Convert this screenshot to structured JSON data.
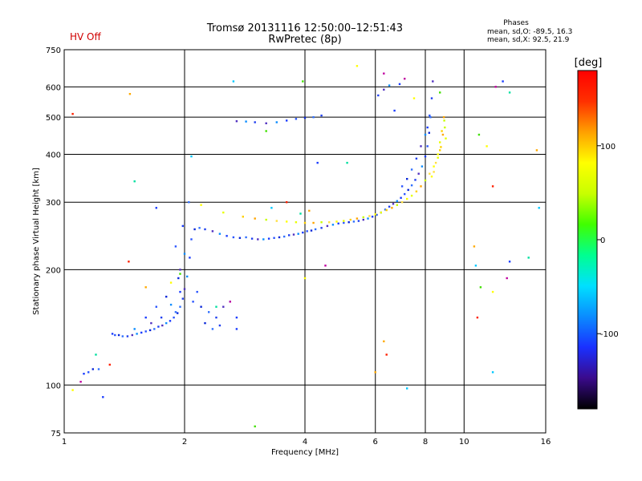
{
  "header": {
    "status": "HV Off",
    "title_line1": "Tromsø 20131116 12:50:00–12:51:43",
    "title_line2": "RwPretec (8p)",
    "phases_label": "Phases",
    "phases_o": "mean, sd,O: -89.5, 16.3",
    "phases_x": "mean, sd,X:  92.5, 21.9"
  },
  "chart_data": {
    "type": "scatter",
    "title": "Tromsø 20131116 12:50:00–12:51:43",
    "subtitle": "RwPretec (8p)",
    "xlabel": "Frequency [MHz]",
    "ylabel": "Stationary phase Virtual Height [km]",
    "x_scale": "log",
    "y_scale": "log",
    "xlim": [
      1,
      16
    ],
    "ylim": [
      75,
      750
    ],
    "x_ticks": [
      1,
      2,
      4,
      6,
      8,
      10,
      16
    ],
    "y_ticks": [
      75,
      100,
      200,
      300,
      400,
      500,
      600,
      750
    ],
    "grid": true,
    "colorbar": {
      "label": "[deg]",
      "range": [
        -180,
        180
      ],
      "ticks": [
        -100,
        0,
        100
      ],
      "colors": [
        "#000000",
        "#3a0a8c",
        "#1a30ff",
        "#0a8cff",
        "#00e0ff",
        "#00ff90",
        "#40ff00",
        "#c8ff00",
        "#ffff00",
        "#ffa000",
        "#ff3000",
        "#ff0000"
      ]
    },
    "series": [
      {
        "trace": "O",
        "points": [
          [
            1.32,
            136
          ],
          [
            1.34,
            135
          ],
          [
            1.37,
            135
          ],
          [
            1.4,
            134
          ],
          [
            1.44,
            134
          ],
          [
            1.48,
            135
          ],
          [
            1.52,
            136
          ],
          [
            1.56,
            137
          ],
          [
            1.6,
            138
          ],
          [
            1.64,
            139
          ],
          [
            1.68,
            140
          ],
          [
            1.72,
            142
          ],
          [
            1.76,
            143
          ],
          [
            1.8,
            145
          ],
          [
            1.84,
            147
          ],
          [
            1.88,
            150
          ],
          [
            1.92,
            154
          ],
          [
            1.95,
            160
          ],
          [
            1.98,
            168
          ],
          [
            2.0,
            178
          ],
          [
            2.03,
            192
          ],
          [
            2.06,
            215
          ],
          [
            2.08,
            240
          ],
          [
            2.12,
            255
          ],
          [
            2.18,
            257
          ],
          [
            2.25,
            255
          ],
          [
            2.35,
            252
          ],
          [
            2.45,
            248
          ],
          [
            2.55,
            245
          ],
          [
            2.65,
            243
          ],
          [
            2.75,
            242
          ],
          [
            2.85,
            243
          ],
          [
            2.95,
            241
          ],
          [
            3.05,
            240
          ],
          [
            3.15,
            240
          ],
          [
            3.25,
            241
          ],
          [
            3.35,
            242
          ],
          [
            3.45,
            243
          ],
          [
            3.55,
            244
          ],
          [
            3.65,
            246
          ],
          [
            3.75,
            247
          ],
          [
            3.85,
            248
          ],
          [
            3.95,
            250
          ],
          [
            4.05,
            252
          ],
          [
            4.15,
            253
          ],
          [
            4.25,
            255
          ],
          [
            4.4,
            257
          ],
          [
            4.55,
            260
          ],
          [
            4.7,
            262
          ],
          [
            4.85,
            264
          ],
          [
            5.0,
            265
          ],
          [
            5.15,
            266
          ],
          [
            5.3,
            267
          ],
          [
            5.45,
            268
          ],
          [
            5.6,
            270
          ],
          [
            5.75,
            272
          ],
          [
            5.9,
            275
          ],
          [
            6.05,
            278
          ],
          [
            6.2,
            282
          ],
          [
            6.35,
            287
          ],
          [
            6.5,
            292
          ],
          [
            6.65,
            297
          ],
          [
            6.8,
            302
          ],
          [
            6.95,
            308
          ],
          [
            7.1,
            315
          ],
          [
            7.25,
            323
          ],
          [
            7.4,
            332
          ],
          [
            7.55,
            343
          ],
          [
            7.7,
            356
          ],
          [
            7.85,
            372
          ],
          [
            8.0,
            395
          ],
          [
            8.1,
            420
          ],
          [
            8.18,
            455
          ],
          [
            8.24,
            500
          ],
          [
            8.3,
            560
          ],
          [
            8.35,
            620
          ],
          [
            1.5,
            140
          ],
          [
            1.6,
            150
          ],
          [
            1.7,
            160
          ],
          [
            1.8,
            170
          ],
          [
            1.9,
            155
          ],
          [
            1.75,
            150
          ],
          [
            1.65,
            145
          ],
          [
            1.85,
            162
          ],
          [
            1.95,
            175
          ],
          [
            2.1,
            165
          ],
          [
            2.2,
            160
          ],
          [
            2.3,
            155
          ],
          [
            2.4,
            150
          ],
          [
            2.5,
            160
          ],
          [
            2.6,
            165
          ],
          [
            2.7,
            150
          ],
          [
            2.15,
            175
          ],
          [
            2.25,
            145
          ],
          [
            2.35,
            140
          ],
          [
            2.45,
            143
          ],
          [
            1.95,
            200
          ],
          [
            2.0,
            220
          ],
          [
            1.98,
            260
          ],
          [
            1.9,
            230
          ],
          [
            1.93,
            190
          ],
          [
            2.05,
            300
          ],
          [
            3.0,
            485
          ],
          [
            3.2,
            482
          ],
          [
            3.4,
            485
          ],
          [
            3.6,
            490
          ],
          [
            3.8,
            495
          ],
          [
            4.0,
            498
          ],
          [
            4.2,
            500
          ],
          [
            4.4,
            505
          ],
          [
            2.7,
            488
          ],
          [
            2.85,
            487
          ],
          [
            1.12,
            107
          ],
          [
            1.15,
            108
          ],
          [
            1.18,
            110
          ],
          [
            1.22,
            110
          ],
          [
            6.1,
            570
          ],
          [
            6.3,
            590
          ],
          [
            6.5,
            605
          ],
          [
            6.7,
            520
          ],
          [
            7.0,
            330
          ],
          [
            7.2,
            345
          ],
          [
            7.4,
            365
          ],
          [
            7.6,
            390
          ],
          [
            7.8,
            420
          ],
          [
            8.0,
            450
          ],
          [
            8.1,
            470
          ],
          [
            8.2,
            505
          ]
        ]
      },
      {
        "trace": "X",
        "points": [
          [
            2.2,
            295
          ],
          [
            2.5,
            282
          ],
          [
            2.8,
            275
          ],
          [
            3.0,
            272
          ],
          [
            3.2,
            270
          ],
          [
            3.4,
            268
          ],
          [
            3.6,
            267
          ],
          [
            3.8,
            266
          ],
          [
            4.0,
            265
          ],
          [
            4.2,
            265
          ],
          [
            4.4,
            266
          ],
          [
            4.6,
            266
          ],
          [
            4.8,
            267
          ],
          [
            5.0,
            268
          ],
          [
            5.2,
            270
          ],
          [
            5.4,
            272
          ],
          [
            5.6,
            274
          ],
          [
            5.8,
            276
          ],
          [
            6.0,
            279
          ],
          [
            6.2,
            282
          ],
          [
            6.4,
            286
          ],
          [
            6.6,
            290
          ],
          [
            6.8,
            295
          ],
          [
            7.0,
            300
          ],
          [
            7.2,
            306
          ],
          [
            7.4,
            312
          ],
          [
            7.6,
            320
          ],
          [
            7.8,
            330
          ],
          [
            8.0,
            342
          ],
          [
            8.2,
            356
          ],
          [
            8.4,
            372
          ],
          [
            8.6,
            392
          ],
          [
            8.75,
            418
          ],
          [
            8.85,
            450
          ],
          [
            8.92,
            490
          ],
          [
            8.5,
            380
          ],
          [
            8.6,
            400
          ],
          [
            8.7,
            430
          ],
          [
            8.8,
            460
          ],
          [
            8.9,
            500
          ],
          [
            8.95,
            470
          ],
          [
            8.4,
            360
          ],
          [
            8.3,
            350
          ],
          [
            9.0,
            440
          ],
          [
            8.7,
            410
          ]
        ]
      },
      {
        "trace": "scatter",
        "points": [
          [
            1.05,
            510
          ],
          [
            1.46,
            575
          ],
          [
            2.65,
            620
          ],
          [
            3.95,
            620
          ],
          [
            5.4,
            680
          ],
          [
            6.3,
            650
          ],
          [
            1.7,
            290
          ],
          [
            1.5,
            340
          ],
          [
            1.45,
            210
          ],
          [
            1.6,
            180
          ],
          [
            2.08,
            395
          ],
          [
            3.2,
            460
          ],
          [
            4.0,
            190
          ],
          [
            4.5,
            205
          ],
          [
            4.3,
            380
          ],
          [
            5.1,
            380
          ],
          [
            6.4,
            120
          ],
          [
            6.3,
            130
          ],
          [
            7.2,
            98
          ],
          [
            3.0,
            78
          ],
          [
            1.05,
            97
          ],
          [
            1.1,
            102
          ],
          [
            1.25,
            93
          ],
          [
            1.2,
            120
          ],
          [
            1.3,
            113
          ],
          [
            6.0,
            108
          ],
          [
            11.8,
            108
          ],
          [
            10.9,
            450
          ],
          [
            11.4,
            420
          ],
          [
            12.0,
            600
          ],
          [
            12.5,
            620
          ],
          [
            13.0,
            580
          ],
          [
            11.8,
            330
          ],
          [
            10.6,
            230
          ],
          [
            10.7,
            205
          ],
          [
            11.0,
            180
          ],
          [
            11.8,
            175
          ],
          [
            12.8,
            190
          ],
          [
            13.0,
            210
          ],
          [
            14.5,
            215
          ],
          [
            10.8,
            150
          ],
          [
            15.2,
            410
          ],
          [
            15.4,
            290
          ],
          [
            8.7,
            580
          ],
          [
            7.5,
            560
          ],
          [
            7.1,
            630
          ],
          [
            6.9,
            610
          ],
          [
            3.9,
            280
          ],
          [
            3.6,
            300
          ],
          [
            4.1,
            285
          ],
          [
            3.3,
            290
          ],
          [
            1.95,
            195
          ],
          [
            1.85,
            185
          ],
          [
            2.6,
            165
          ],
          [
            2.7,
            140
          ],
          [
            2.4,
            160
          ]
        ]
      }
    ]
  }
}
